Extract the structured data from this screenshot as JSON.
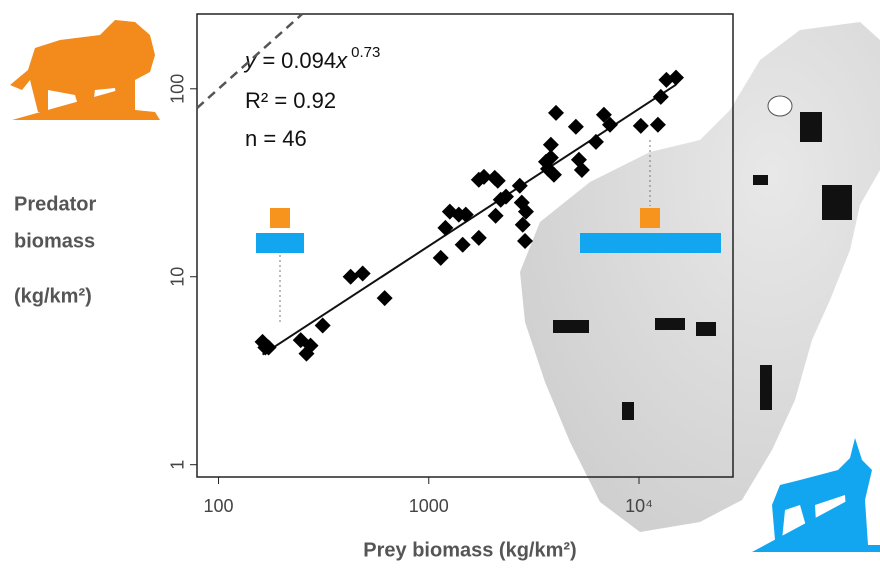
{
  "chart_data": {
    "type": "scatter",
    "xlabel": "Prey biomass  (kg/km²)",
    "ylabel": [
      "Predator",
      "biomass",
      "(kg/km²)"
    ],
    "fit": {
      "prefix": "y = ",
      "coef": 0.094,
      "variable": "x",
      "exponent": 0.73
    },
    "annotations": [
      "R² = 0.92",
      "n = 46"
    ],
    "log_x": true,
    "log_y": true,
    "xlim": [
      79,
      28000
    ],
    "ylim": [
      0.86,
      250
    ],
    "xticks": [
      100,
      1000,
      {
        "value": 10000,
        "label": "10⁴"
      }
    ],
    "yticks": [
      1,
      10,
      100
    ],
    "color": "#000000",
    "x": [
      162,
      167,
      173,
      246,
      262,
      274,
      313,
      425,
      485,
      617,
      1140,
      1200,
      1260,
      1390,
      1450,
      1500,
      1730,
      1730,
      1830,
      2060,
      2130,
      2080,
      2200,
      2330,
      2710,
      2900,
      2800,
      2870,
      2770,
      3610,
      3690,
      3810,
      4030,
      3810,
      3940,
      5180,
      5350,
      5010,
      6240,
      6810,
      7280,
      10200,
      12300,
      12700,
      13500,
      15000
    ],
    "y": [
      4.5,
      4.2,
      4.2,
      4.6,
      3.9,
      4.3,
      5.5,
      10,
      10.4,
      7.7,
      12.6,
      18.2,
      22.2,
      21.4,
      14.8,
      21.4,
      16.1,
      32.8,
      34,
      33.6,
      32.4,
      21.1,
      25.7,
      26.7,
      30.5,
      22.2,
      18.9,
      15.5,
      24.8,
      40.9,
      37.5,
      50.4,
      74.5,
      43,
      34.9,
      41.9,
      37,
      62.8,
      52.2,
      72.8,
      64.4,
      63.5,
      64.4,
      90.6,
      111.6,
      114.6
    ]
  }
}
